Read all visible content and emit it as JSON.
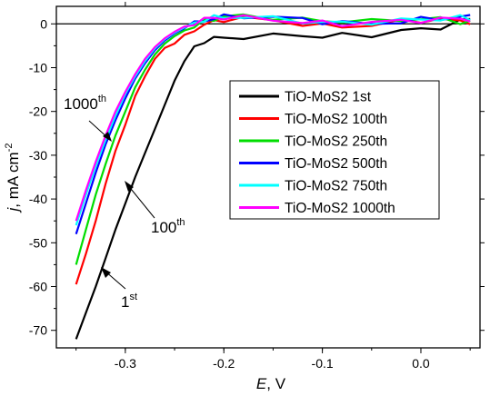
{
  "chart_data": {
    "type": "line",
    "xlabel": {
      "italic": "E",
      "rest": ", V"
    },
    "ylabel": {
      "italic": "j",
      "rest": ", mA cm",
      "sup": "-2"
    },
    "xlim": [
      -0.37,
      0.06
    ],
    "ylim": [
      -74,
      4
    ],
    "xticks": [
      -0.3,
      -0.2,
      -0.1,
      0.0
    ],
    "xtick_labels": [
      "-0.3",
      "-0.2",
      "-0.1",
      "0.0"
    ],
    "yticks": [
      0,
      -10,
      -20,
      -30,
      -40,
      -50,
      -60,
      -70
    ],
    "ytick_labels": [
      "0",
      "-10",
      "-20",
      "-30",
      "-40",
      "-50",
      "-60",
      "-70"
    ],
    "zero_line": true,
    "legend_position": "center-right",
    "series": [
      {
        "name": "TiO-MoS2 1st",
        "color": "#000000",
        "x": [
          -0.35,
          -0.34,
          -0.33,
          -0.32,
          -0.31,
          -0.3,
          -0.29,
          -0.28,
          -0.27,
          -0.26,
          -0.25,
          -0.24,
          -0.23,
          -0.22,
          -0.21,
          -0.2,
          -0.18,
          -0.15,
          -0.12,
          -0.1,
          -0.08,
          -0.05,
          -0.02,
          0.0,
          0.02,
          0.04,
          0.05
        ],
        "y": [
          -72,
          -66,
          -60,
          -53.5,
          -47,
          -41,
          -35,
          -29.5,
          -24,
          -18.5,
          -13,
          -8.5,
          -5.5,
          -3.8,
          -3.4,
          -3.2,
          -3.0,
          -2.8,
          -2.5,
          -3.0,
          -2.6,
          -2.5,
          -1.6,
          -1.3,
          -0.7,
          0.5,
          1.2
        ]
      },
      {
        "name": "TiO-MoS2 100th",
        "color": "#ff0000",
        "x": [
          -0.35,
          -0.34,
          -0.33,
          -0.32,
          -0.31,
          -0.3,
          -0.29,
          -0.28,
          -0.27,
          -0.26,
          -0.25,
          -0.24,
          -0.23,
          -0.22,
          -0.21,
          -0.2,
          -0.18,
          -0.15,
          -0.12,
          -0.1,
          -0.08,
          -0.05,
          -0.02,
          0.0,
          0.02,
          0.04,
          0.05
        ],
        "y": [
          -59.5,
          -52.5,
          -45,
          -36.5,
          -29,
          -23,
          -16.5,
          -12,
          -8,
          -5.5,
          -4.5,
          -2.5,
          -1.2,
          -0.3,
          0.5,
          1.0,
          1.2,
          0.8,
          0.0,
          -0.5,
          -0.5,
          -0.3,
          0.5,
          0.8,
          1.0,
          0.5,
          0.5
        ]
      },
      {
        "name": "TiO-MoS2 250th",
        "color": "#00dd00",
        "x": [
          -0.35,
          -0.34,
          -0.33,
          -0.32,
          -0.31,
          -0.3,
          -0.29,
          -0.28,
          -0.27,
          -0.26,
          -0.25,
          -0.24,
          -0.23,
          -0.22,
          -0.21,
          -0.2,
          -0.18,
          -0.15,
          -0.12,
          -0.1,
          -0.08,
          -0.05,
          -0.02,
          0.0,
          0.02,
          0.04,
          0.05
        ],
        "y": [
          -55,
          -47,
          -39,
          -32,
          -25.5,
          -20,
          -14.5,
          -10.5,
          -7,
          -4.5,
          -2.8,
          -1.5,
          -0.6,
          0.5,
          1.2,
          1.6,
          1.8,
          1.5,
          1.0,
          0.6,
          0.8,
          0.5,
          1.0,
          1.2,
          1.0,
          0.5,
          0.5
        ]
      },
      {
        "name": "TiO-MoS2 500th",
        "color": "#0000ff",
        "x": [
          -0.35,
          -0.34,
          -0.33,
          -0.32,
          -0.31,
          -0.3,
          -0.29,
          -0.28,
          -0.27,
          -0.26,
          -0.25,
          -0.24,
          -0.23,
          -0.22,
          -0.21,
          -0.2,
          -0.18,
          -0.15,
          -0.12,
          -0.1,
          -0.08,
          -0.05,
          -0.02,
          0.0,
          0.02,
          0.04,
          0.05
        ],
        "y": [
          -48,
          -41,
          -34,
          -27.5,
          -22,
          -17,
          -12.5,
          -9,
          -6,
          -3.8,
          -2.2,
          -1.0,
          0.0,
          0.8,
          1.3,
          1.6,
          1.8,
          1.5,
          1.0,
          0.5,
          0.2,
          0.0,
          0.6,
          1.0,
          1.2,
          1.8,
          1.5
        ]
      },
      {
        "name": "TiO-MoS2 750th",
        "color": "#00ffff",
        "x": [
          -0.35,
          -0.34,
          -0.33,
          -0.32,
          -0.31,
          -0.3,
          -0.29,
          -0.28,
          -0.27,
          -0.26,
          -0.25,
          -0.24,
          -0.23,
          -0.22,
          -0.21,
          -0.2,
          -0.18,
          -0.15,
          -0.12,
          -0.1,
          -0.08,
          -0.05,
          -0.02,
          0.0,
          0.02,
          0.04,
          0.05
        ],
        "y": [
          -46,
          -39,
          -32.5,
          -26.5,
          -21,
          -16,
          -12,
          -8.5,
          -5.6,
          -3.5,
          -2.0,
          -0.8,
          0.2,
          1.0,
          1.4,
          1.6,
          1.6,
          1.2,
          0.6,
          0.3,
          0.2,
          0.4,
          0.8,
          1.0,
          1.2,
          1.4,
          1.2
        ]
      },
      {
        "name": "TiO-MoS2 1000th",
        "color": "#ff00ff",
        "x": [
          -0.35,
          -0.34,
          -0.33,
          -0.32,
          -0.31,
          -0.3,
          -0.29,
          -0.28,
          -0.27,
          -0.26,
          -0.25,
          -0.24,
          -0.23,
          -0.22,
          -0.21,
          -0.2,
          -0.18,
          -0.15,
          -0.12,
          -0.1,
          -0.08,
          -0.05,
          -0.02,
          0.0,
          0.02,
          0.04,
          0.05
        ],
        "y": [
          -45,
          -38,
          -31.5,
          -25.5,
          -20,
          -15.5,
          -11.5,
          -8,
          -5.3,
          -3.3,
          -1.8,
          -0.6,
          0.3,
          1.0,
          1.3,
          1.5,
          1.4,
          1.0,
          0.4,
          0.2,
          0.0,
          0.3,
          0.6,
          0.8,
          1.0,
          1.2,
          1.0
        ]
      }
    ],
    "annotations": [
      {
        "base": "1000",
        "sup": "th"
      },
      {
        "base": "100",
        "sup": "th"
      },
      {
        "base": "1",
        "sup": "st"
      }
    ]
  }
}
